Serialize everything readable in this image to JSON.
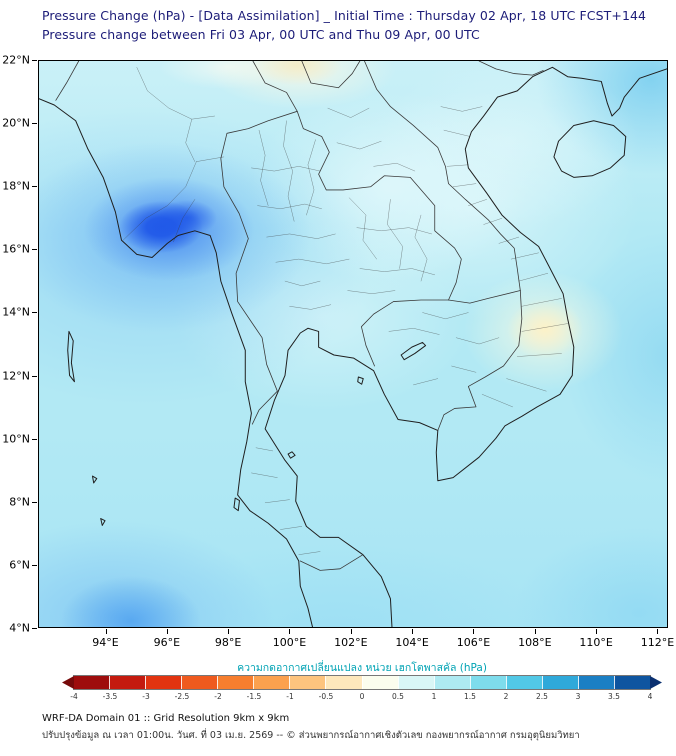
{
  "header": {
    "line1": "Pressure Change (hPa) - [Data Assimilation] _ Initial Time : Thursday 02 Apr, 18 UTC FCST+144",
    "line2": "Pressure change between Fri 03 Apr, 00 UTC and Thu 09 Apr, 00 UTC"
  },
  "map": {
    "y_tick_labels": [
      "22°N",
      "20°N",
      "18°N",
      "16°N",
      "14°N",
      "12°N",
      "10°N",
      "8°N",
      "6°N",
      "4°N"
    ],
    "x_tick_labels": [
      "94°E",
      "96°E",
      "98°E",
      "100°E",
      "102°E",
      "104°E",
      "106°E",
      "108°E",
      "110°E",
      "112°E"
    ]
  },
  "colorbar": {
    "caption": "ความกดอากาศเปลี่ยนแปลง หน่วย เฮกโตพาสคัล (hPa)",
    "tick_labels": [
      "-4",
      "-3.5",
      "-3",
      "-2.5",
      "-2",
      "-1.5",
      "-1",
      "-0.5",
      "0",
      "0.5",
      "1",
      "1.5",
      "2",
      "2.5",
      "3",
      "3.5",
      "4"
    ],
    "min": -4,
    "max": 4,
    "segment_colors": [
      "#9e0d0d",
      "#c41a0f",
      "#e23410",
      "#ef5a1e",
      "#f67e2e",
      "#fba14e",
      "#fdc47e",
      "#fee8bc",
      "#fbfdee",
      "#d9f6f6",
      "#aeeaf2",
      "#7edcec",
      "#52c8e6",
      "#2fa9da",
      "#1b7fc4",
      "#0e55a0"
    ],
    "left_arrow_color": "#760a0a",
    "right_arrow_color": "#0a3070"
  },
  "footer": {
    "line1": "WRF-DA Domain 01 :: Grid Resolution 9km x 9km",
    "line2": "ปรับปรุงข้อมูล ณ เวลา 01:00น. วันศ. ที่ 03 เม.ย. 2569 -- © ส่วนพยากรณ์อากาศเชิงตัวเลข กองพยากรณ์อากาศ กรมอุตุนิยมวิทยา"
  },
  "colors": {
    "title": "#1c1c78",
    "caption": "#00a3b4",
    "field_base": "#b2e9f4",
    "anomaly_core_blue": "#1e56e8",
    "anomaly_yellow": "#fdf1c6"
  }
}
